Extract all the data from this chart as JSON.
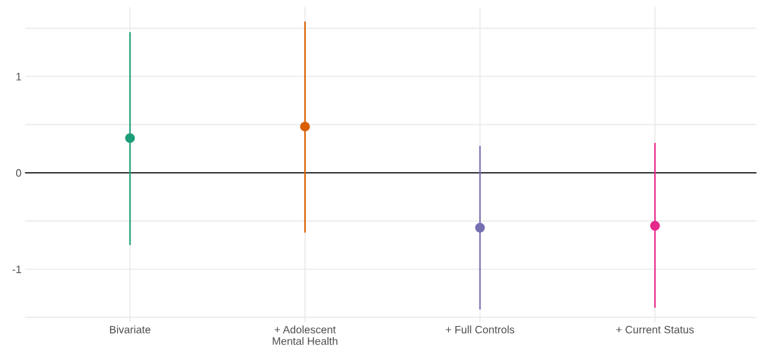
{
  "chart_data": {
    "type": "scatter",
    "categories": [
      "Bivariate",
      "+ Adolescent\nMental Health",
      "+ Full Controls",
      "+ Current Status"
    ],
    "values": [
      0.36,
      0.48,
      -0.57,
      -0.55
    ],
    "colors": [
      "#1b9e77",
      "#d95f02",
      "#7570b3",
      "#e7298a"
    ],
    "errors": [
      [
        -0.75,
        1.46
      ],
      [
        -0.62,
        1.57
      ],
      [
        -1.42,
        0.28
      ],
      [
        -1.4,
        0.31
      ]
    ],
    "ylim": [
      -1.55,
      1.72
    ],
    "yticks": [
      {
        "value": -1.5,
        "label": null
      },
      -1,
      {
        "value": -0.5,
        "label": null
      },
      0,
      {
        "value": 0.5,
        "label": null
      },
      1,
      {
        "value": 1.5,
        "label": null
      }
    ],
    "ref_lines": [
      {
        "axis": "y",
        "value": 0,
        "color": "#333333"
      }
    ],
    "grid": true,
    "marker": "circle",
    "legend": false
  }
}
